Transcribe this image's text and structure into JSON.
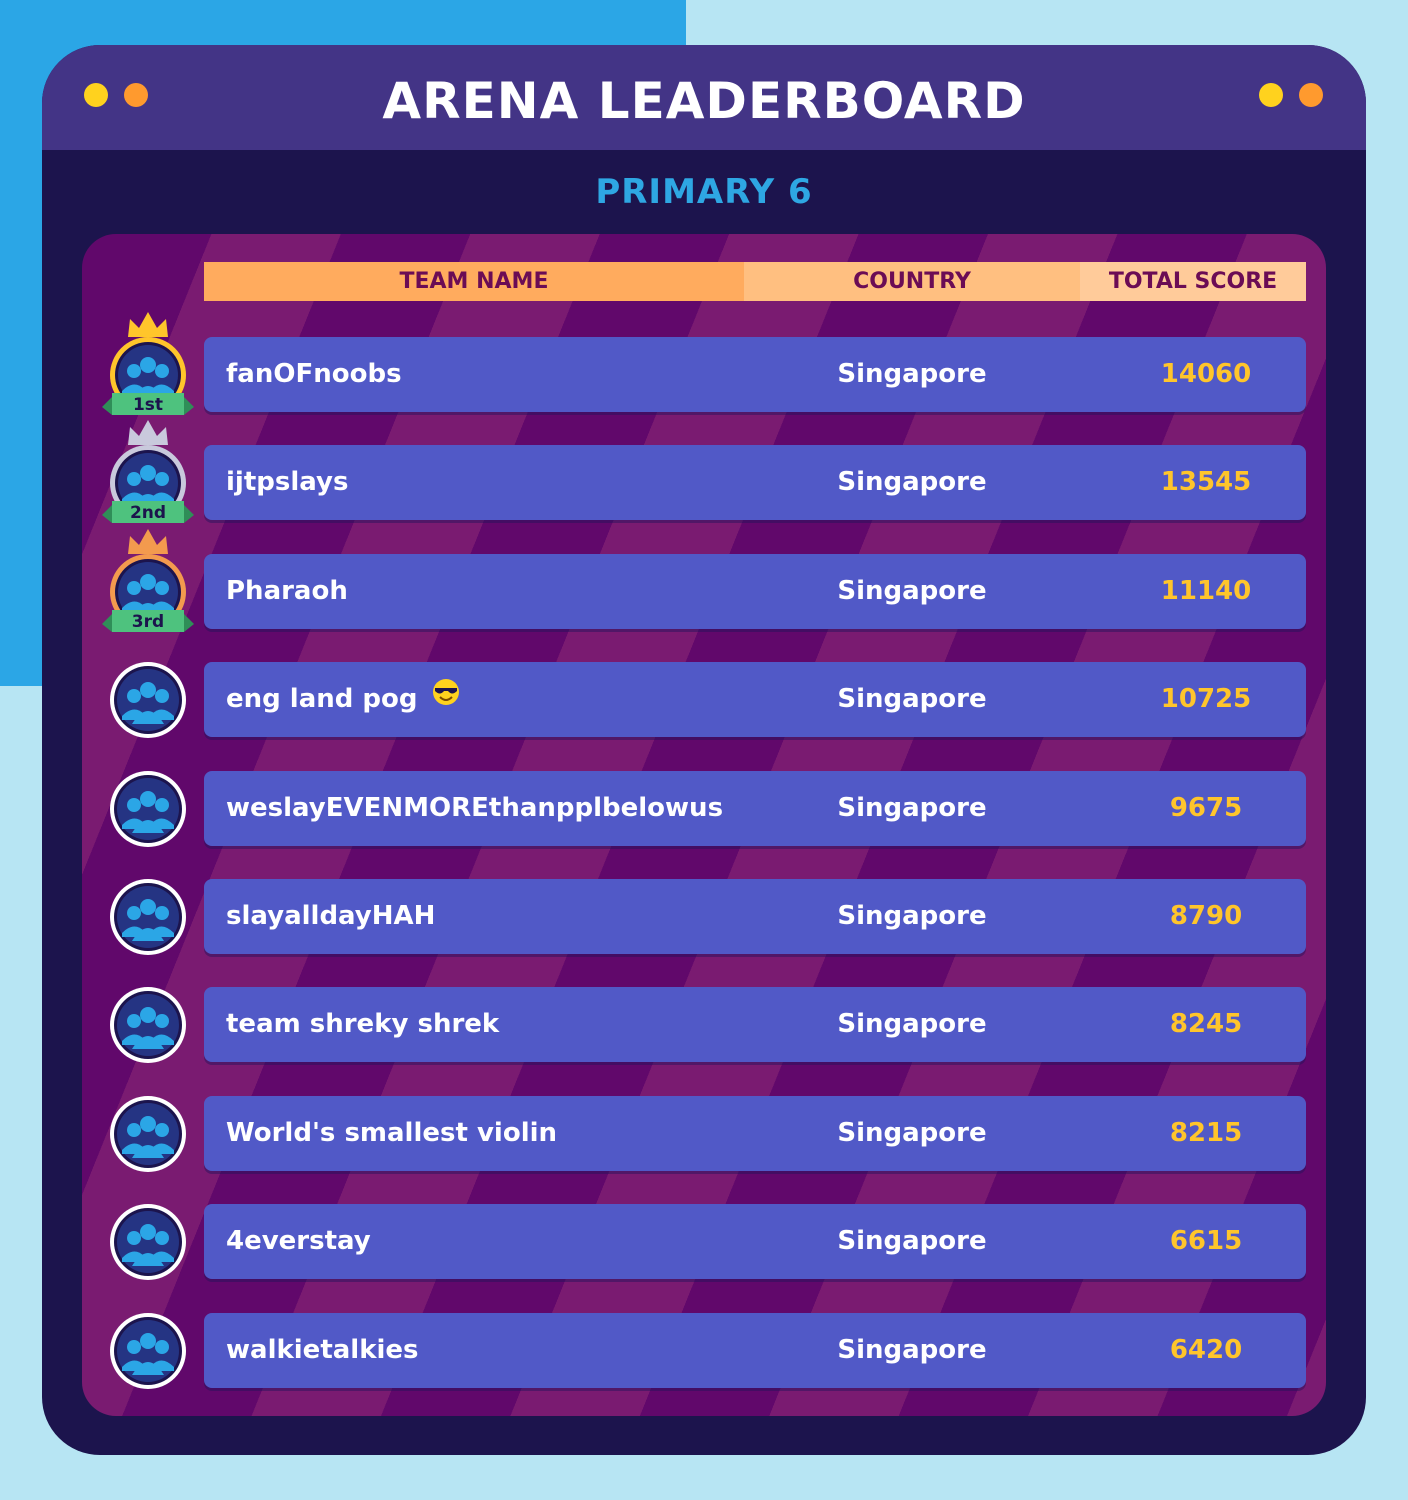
{
  "header": {
    "title": "ARENA LEADERBOARD",
    "subtitle": "PRIMARY 6"
  },
  "columns": {
    "team": "TEAM NAME",
    "country": "COUNTRY",
    "score": "TOTAL SCORE"
  },
  "colors": {
    "dot_yellow": "#ffd21e",
    "dot_orange": "#ff9a2e",
    "row": "#5159c7",
    "score": "#ffc52b",
    "gold": "#ffc52b",
    "silver": "#c9c9dc",
    "bronze": "#f39a4e",
    "ribbon": "#4ec27e"
  },
  "entries": [
    {
      "rank": 1,
      "rank_label": "1st",
      "medal": "gold",
      "team": "fanOFnoobs",
      "country": "Singapore",
      "score": "14060"
    },
    {
      "rank": 2,
      "rank_label": "2nd",
      "medal": "silver",
      "team": "ijtpslays",
      "country": "Singapore",
      "score": "13545"
    },
    {
      "rank": 3,
      "rank_label": "3rd",
      "medal": "bronze",
      "team": "Pharaoh",
      "country": "Singapore",
      "score": "11140"
    },
    {
      "rank": 4,
      "team": "eng land pog",
      "emoji": "sunglasses-emoji-icon",
      "country": "Singapore",
      "score": "10725"
    },
    {
      "rank": 5,
      "team": "weslayEVENMOREthanpplbelowus",
      "country": "Singapore",
      "score": "9675"
    },
    {
      "rank": 6,
      "team": "slayalldayHAH",
      "country": "Singapore",
      "score": "8790"
    },
    {
      "rank": 7,
      "team": "team shreky shrek",
      "country": "Singapore",
      "score": "8245"
    },
    {
      "rank": 8,
      "team": "World's smallest violin",
      "country": "Singapore",
      "score": "8215"
    },
    {
      "rank": 9,
      "team": "4everstay",
      "country": "Singapore",
      "score": "6615"
    },
    {
      "rank": 10,
      "team": "walkietalkies",
      "country": "Singapore",
      "score": "6420"
    }
  ]
}
